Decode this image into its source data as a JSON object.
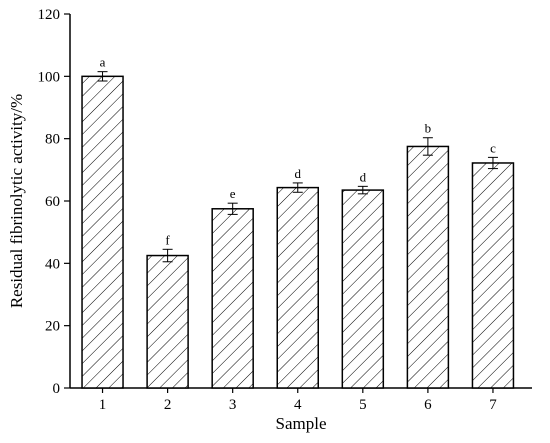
{
  "chart_data": {
    "type": "bar",
    "xlabel": "Sample",
    "ylabel": "Residual fibrinolytic activity/%",
    "ylim": [
      0,
      120
    ],
    "yticks": [
      0,
      20,
      40,
      60,
      80,
      100,
      120
    ],
    "categories": [
      "1",
      "2",
      "3",
      "4",
      "5",
      "6",
      "7"
    ],
    "values": [
      100,
      42.5,
      57.5,
      64.3,
      63.5,
      77.5,
      72.2
    ],
    "errors": [
      1.5,
      2.0,
      1.8,
      1.5,
      1.2,
      2.8,
      1.8
    ],
    "significance_labels": [
      "a",
      "f",
      "e",
      "d",
      "d",
      "b",
      "c"
    ],
    "bar_pattern": "diagonal-hatch",
    "grid": false,
    "legend": "none"
  }
}
